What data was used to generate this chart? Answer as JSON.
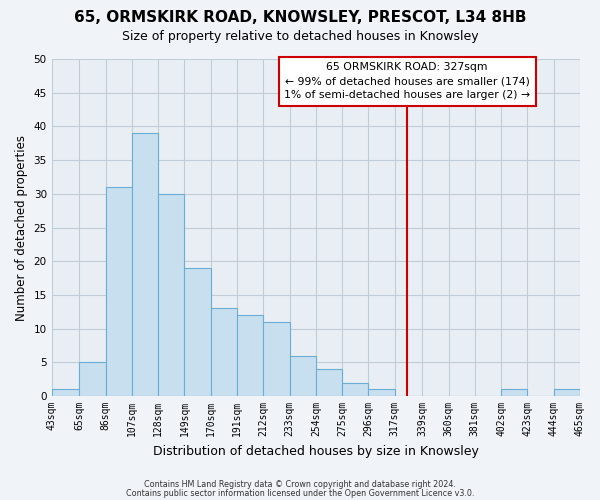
{
  "title": "65, ORMSKIRK ROAD, KNOWSLEY, PRESCOT, L34 8HB",
  "subtitle": "Size of property relative to detached houses in Knowsley",
  "xlabel": "Distribution of detached houses by size in Knowsley",
  "ylabel": "Number of detached properties",
  "bin_edges": [
    43,
    65,
    86,
    107,
    128,
    149,
    170,
    191,
    212,
    233,
    254,
    275,
    296,
    317,
    339,
    360,
    381,
    402,
    423,
    444,
    465
  ],
  "bar_heights": [
    1,
    5,
    31,
    39,
    30,
    19,
    13,
    12,
    11,
    6,
    4,
    2,
    1,
    0,
    0,
    0,
    0,
    1,
    0,
    1
  ],
  "bar_color": "#c8dff0",
  "bar_edgecolor": "#6aadd5",
  "vline_x": 327,
  "vline_color": "#cc0000",
  "ylim": [
    0,
    50
  ],
  "yticks": [
    0,
    5,
    10,
    15,
    20,
    25,
    30,
    35,
    40,
    45,
    50
  ],
  "annotation_line0": "65 ORMSKIRK ROAD: 327sqm",
  "annotation_line1": "← 99% of detached houses are smaller (174)",
  "annotation_line2": "1% of semi-detached houses are larger (2) →",
  "footnote1": "Contains HM Land Registry data © Crown copyright and database right 2024.",
  "footnote2": "Contains public sector information licensed under the Open Government Licence v3.0.",
  "background_color": "#f0f4f8",
  "plot_bg_color": "#e8eef4",
  "grid_color": "#c0ccd8",
  "title_fontsize": 11,
  "subtitle_fontsize": 9,
  "tick_fontsize": 7,
  "ylabel_fontsize": 8.5,
  "xlabel_fontsize": 9
}
